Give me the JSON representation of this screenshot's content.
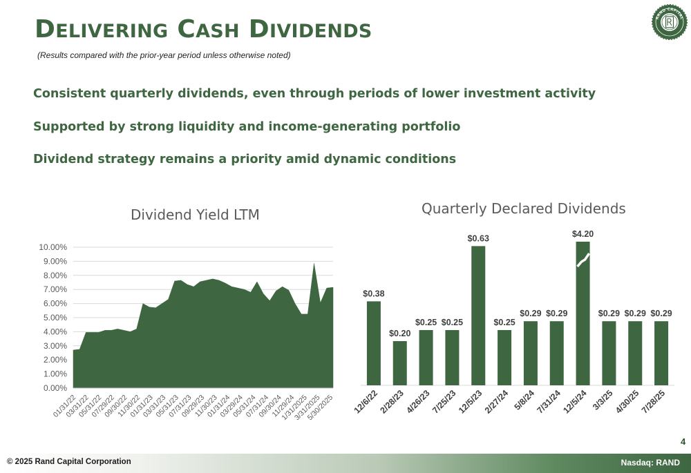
{
  "header": {
    "title_first_letter": "D",
    "title_rest_1": "ELIVERING",
    "title_letter_2": "C",
    "title_rest_2": "ASH",
    "title_letter_3": "D",
    "title_rest_3": "IVIDENDS",
    "subtitle": "(Results compared with the prior-year period unless otherwise noted)"
  },
  "logo": {
    "icon": "rand-capital-seal-icon",
    "text": "RAND CAPITAL"
  },
  "bullets": [
    "Consistent quarterly dividends, even through periods of lower investment activity",
    "Supported by strong liquidity and income-generating portfolio",
    "Dividend strategy remains a priority amid dynamic conditions"
  ],
  "chart_data": [
    {
      "type": "area",
      "title": "Dividend Yield LTM",
      "xlabel": "",
      "ylabel": "",
      "ylim": [
        0,
        10
      ],
      "y_unit": "%",
      "y_ticks": [
        "0.00%",
        "1.00%",
        "2.00%",
        "3.00%",
        "4.00%",
        "5.00%",
        "6.00%",
        "7.00%",
        "8.00%",
        "9.00%",
        "10.00%"
      ],
      "x_tick_labels": [
        "01/31/22",
        "03/31/22",
        "05/31/22",
        "07/29/22",
        "09/30/22",
        "11/30/22",
        "01/31/23",
        "03/31/23",
        "05/31/23",
        "07/31/23",
        "09/29/23",
        "11/30/23",
        "01/31/24",
        "03/29/24",
        "05/31/24",
        "07/31/24",
        "09/30/24",
        "11/29/24",
        "1/31/2025",
        "3/31/2025",
        "5/30/2025"
      ],
      "x": [
        "01/31/22",
        "02/28/22",
        "03/31/22",
        "04/29/22",
        "05/31/22",
        "06/30/22",
        "07/29/22",
        "08/31/22",
        "09/30/22",
        "10/31/22",
        "11/30/22",
        "12/30/22",
        "01/31/23",
        "02/28/23",
        "03/31/23",
        "04/28/23",
        "05/31/23",
        "06/30/23",
        "07/31/23",
        "08/31/23",
        "09/29/23",
        "10/31/23",
        "11/30/23",
        "12/29/23",
        "01/31/24",
        "02/29/24",
        "03/29/24",
        "04/30/24",
        "05/31/24",
        "06/28/24",
        "07/31/24",
        "08/30/24",
        "09/30/24",
        "10/31/24",
        "11/29/24",
        "12/31/24",
        "1/31/2025",
        "2/28/2025",
        "3/31/2025",
        "4/30/2025",
        "5/30/2025",
        "6/30/2025"
      ],
      "values": [
        2.7,
        2.75,
        3.95,
        3.95,
        3.95,
        4.1,
        4.1,
        4.2,
        4.1,
        4.0,
        4.2,
        6.0,
        5.75,
        5.7,
        6.0,
        6.3,
        7.6,
        7.65,
        7.35,
        7.2,
        7.55,
        7.65,
        7.75,
        7.65,
        7.45,
        7.2,
        7.1,
        7.0,
        6.8,
        7.55,
        6.7,
        6.2,
        6.9,
        7.2,
        6.95,
        6.0,
        5.25,
        5.25,
        8.85,
        6.05,
        7.1,
        7.15
      ],
      "color": "#3d6641",
      "grid": true
    },
    {
      "type": "bar",
      "title": "Quarterly Declared Dividends",
      "xlabel": "",
      "ylabel": "",
      "categories": [
        "12/6/22",
        "2/28/23",
        "4/26/23",
        "7/25/23",
        "12/5/23",
        "2/27/24",
        "5/8/24",
        "7/31/24",
        "12/5/24",
        "3/3/25",
        "4/30/25",
        "7/28/25"
      ],
      "values": [
        0.38,
        0.2,
        0.25,
        0.25,
        0.63,
        0.25,
        0.29,
        0.29,
        4.2,
        0.29,
        0.29,
        0.29
      ],
      "labels": [
        "$0.38",
        "$0.20",
        "$0.25",
        "$0.25",
        "$0.63",
        "$0.25",
        "$0.29",
        "$0.29",
        "$4.20",
        "$0.29",
        "$0.29",
        "$0.29"
      ],
      "axis_break": {
        "category": "12/5/24",
        "display_cap": 1.0
      },
      "color": "#3d6641",
      "grid": false
    }
  ],
  "footer": {
    "page_number": "4",
    "copyright": "© 2025 Rand Capital Corporation",
    "ticker": "Nasdaq:  RAND"
  }
}
